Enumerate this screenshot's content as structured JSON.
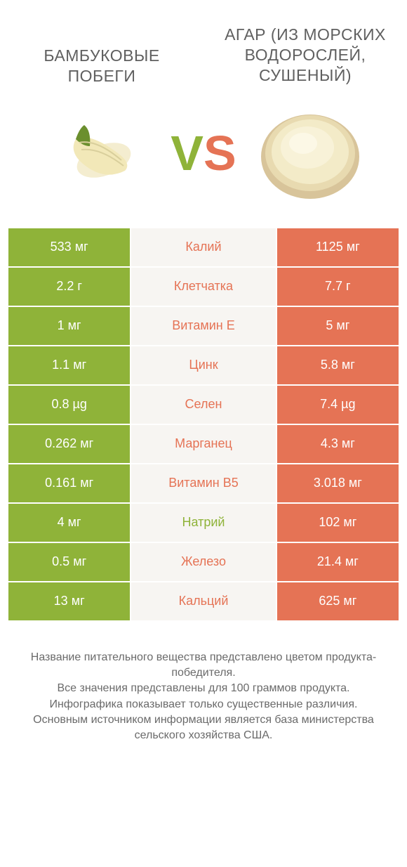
{
  "colors": {
    "left": "#8fb339",
    "right": "#e57355",
    "mid_bg": "#f7f5f2",
    "text": "#555555",
    "bg": "#ffffff"
  },
  "header": {
    "left_title": "БАМБУКОВЫЕ ПОБЕГИ",
    "right_title": "АГАР (ИЗ МОРСКИХ ВОДОРОСЛЕЙ, СУШЕНЫЙ)"
  },
  "vs": {
    "v": "V",
    "s": "S"
  },
  "rows": [
    {
      "left": "533 мг",
      "label": "Калий",
      "right": "1125 мг",
      "winner": "right"
    },
    {
      "left": "2.2 г",
      "label": "Клетчатка",
      "right": "7.7 г",
      "winner": "right"
    },
    {
      "left": "1 мг",
      "label": "Витамин E",
      "right": "5 мг",
      "winner": "right"
    },
    {
      "left": "1.1 мг",
      "label": "Цинк",
      "right": "5.8 мг",
      "winner": "right"
    },
    {
      "left": "0.8 µg",
      "label": "Селен",
      "right": "7.4 µg",
      "winner": "right"
    },
    {
      "left": "0.262 мг",
      "label": "Марганец",
      "right": "4.3 мг",
      "winner": "right"
    },
    {
      "left": "0.161 мг",
      "label": "Витамин B5",
      "right": "3.018 мг",
      "winner": "right"
    },
    {
      "left": "4 мг",
      "label": "Натрий",
      "right": "102 мг",
      "winner": "left"
    },
    {
      "left": "0.5 мг",
      "label": "Железо",
      "right": "21.4 мг",
      "winner": "right"
    },
    {
      "left": "13 мг",
      "label": "Кальций",
      "right": "625 мг",
      "winner": "right"
    }
  ],
  "footer": {
    "line1": "Название питательного вещества представлено цветом продукта-победителя.",
    "line2": "Все значения представлены для 100 граммов продукта.",
    "line3": "Инфографика показывает только существенные различия.",
    "line4": "Основным источником информации является база министерства сельского хозяйства США."
  }
}
